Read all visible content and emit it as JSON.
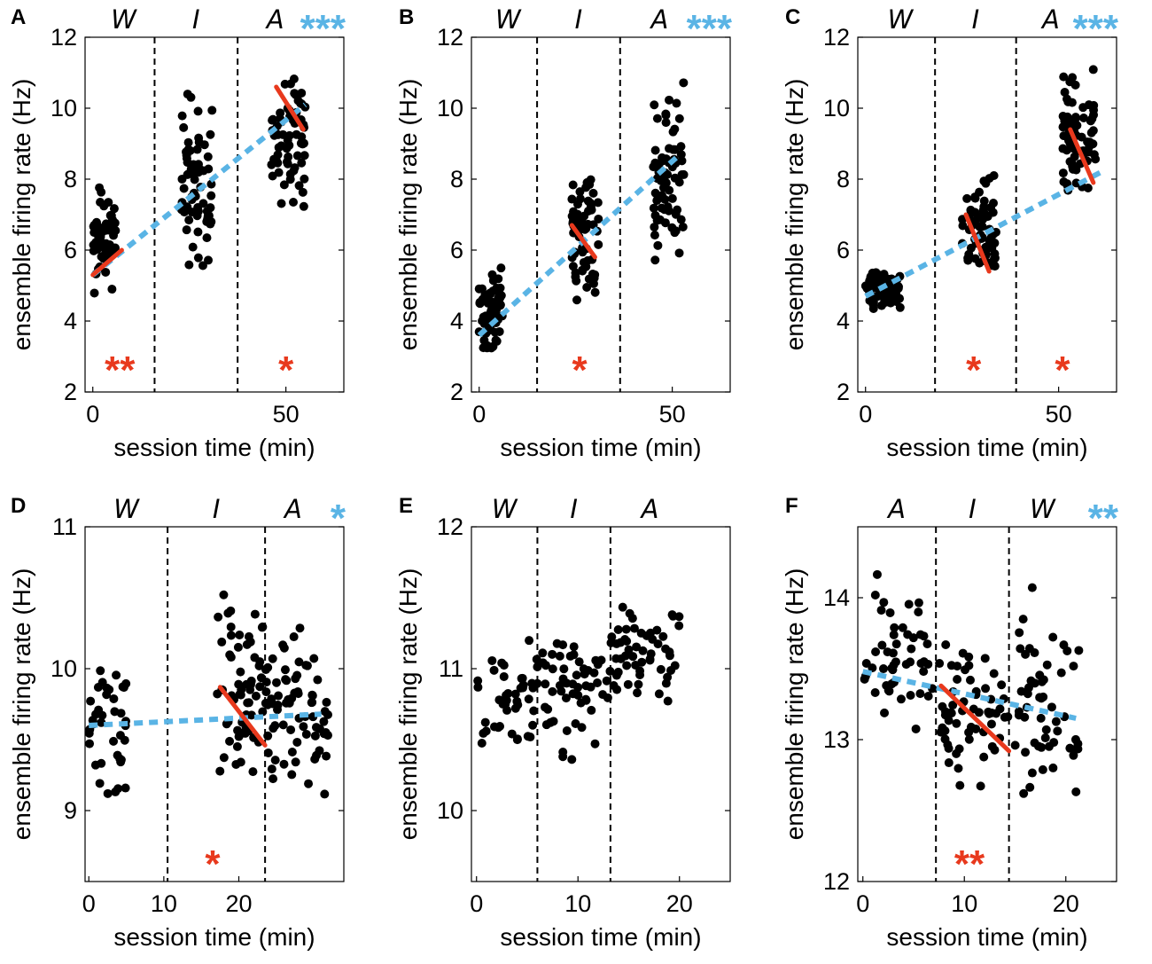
{
  "colors": {
    "dots": "#000000",
    "trend": "#5ab4e5",
    "phase_fit": "#e8391d",
    "stars_global": "#5ab4e5",
    "stars_local": "#e8391d"
  },
  "chart_data": [
    {
      "type": "scatter",
      "panel": "A",
      "xlabel": "session time (min)",
      "ylabel": "ensemble firing rate (Hz)",
      "xlim": [
        -2,
        65
      ],
      "ylim": [
        2,
        12
      ],
      "xticks": [
        0,
        50
      ],
      "yticks": [
        2,
        4,
        6,
        8,
        10,
        12
      ],
      "phase_labels": [
        "W",
        "I",
        "A"
      ],
      "boundaries": [
        16,
        37.5
      ],
      "global_stars": "***",
      "trend": {
        "x": [
          0,
          55
        ],
        "y": [
          5.3,
          10.1
        ]
      },
      "phase_fits": [
        {
          "x": [
            0,
            7.5
          ],
          "y": [
            5.3,
            6.0
          ]
        },
        {
          "x": [
            47.5,
            54.5
          ],
          "y": [
            10.6,
            9.4
          ]
        }
      ],
      "local_stars": [
        {
          "text": "**",
          "x": 7,
          "y": 2.6
        },
        {
          "text": "*",
          "x": 50,
          "y": 2.6
        }
      ],
      "clusters": [
        {
          "x": [
            0,
            6
          ],
          "y": [
            4.6,
            8.3
          ],
          "n": 55,
          "seed": 11
        },
        {
          "x": [
            23,
            31
          ],
          "y": [
            4.4,
            11.3
          ],
          "n": 65,
          "seed": 12
        },
        {
          "x": [
            46,
            55
          ],
          "y": [
            6.9,
            11.4
          ],
          "n": 65,
          "seed": 13
        }
      ]
    },
    {
      "type": "scatter",
      "panel": "B",
      "xlabel": "session time (min)",
      "ylabel": "ensemble firing rate (Hz)",
      "xlim": [
        -2,
        65
      ],
      "ylim": [
        2,
        12
      ],
      "xticks": [
        0,
        50
      ],
      "yticks": [
        2,
        4,
        6,
        8,
        10,
        12
      ],
      "phase_labels": [
        "W",
        "I",
        "A"
      ],
      "boundaries": [
        15,
        36.5
      ],
      "global_stars": "***",
      "trend": {
        "x": [
          0,
          52
        ],
        "y": [
          3.6,
          8.7
        ]
      },
      "phase_fits": [
        {
          "x": [
            24,
            30
          ],
          "y": [
            6.7,
            5.8
          ]
        }
      ],
      "local_stars": [
        {
          "text": "*",
          "x": 26,
          "y": 2.6
        }
      ],
      "clusters": [
        {
          "x": [
            0,
            6
          ],
          "y": [
            2.8,
            6.0
          ],
          "n": 65,
          "seed": 21
        },
        {
          "x": [
            24,
            31
          ],
          "y": [
            4.1,
            8.9
          ],
          "n": 65,
          "seed": 22
        },
        {
          "x": [
            45,
            53
          ],
          "y": [
            4.6,
            11.7
          ],
          "n": 70,
          "seed": 23
        }
      ]
    },
    {
      "type": "scatter",
      "panel": "C",
      "xlabel": "session time (min)",
      "ylabel": "ensemble firing rate (Hz)",
      "xlim": [
        -2,
        65
      ],
      "ylim": [
        2,
        12
      ],
      "xticks": [
        0,
        50
      ],
      "yticks": [
        2,
        4,
        6,
        8,
        10,
        12
      ],
      "phase_labels": [
        "W",
        "I",
        "A"
      ],
      "boundaries": [
        18,
        39
      ],
      "global_stars": "***",
      "trend": {
        "x": [
          0,
          61
        ],
        "y": [
          4.7,
          8.2
        ]
      },
      "phase_fits": [
        {
          "x": [
            26,
            32
          ],
          "y": [
            7.0,
            5.4
          ]
        },
        {
          "x": [
            53,
            59
          ],
          "y": [
            9.4,
            7.9
          ]
        }
      ],
      "local_stars": [
        {
          "text": "*",
          "x": 28,
          "y": 2.6
        },
        {
          "text": "*",
          "x": 51,
          "y": 2.6
        }
      ],
      "clusters": [
        {
          "x": [
            0,
            9
          ],
          "y": [
            4.2,
            5.6
          ],
          "n": 80,
          "seed": 31
        },
        {
          "x": [
            25,
            34
          ],
          "y": [
            4.6,
            8.9
          ],
          "n": 65,
          "seed": 32
        },
        {
          "x": [
            51,
            60
          ],
          "y": [
            6.7,
            11.9
          ],
          "n": 70,
          "seed": 33
        }
      ]
    },
    {
      "type": "scatter",
      "panel": "D",
      "xlabel": "session time (min)",
      "ylabel": "ensemble firing rate (Hz)",
      "xlim": [
        -0.5,
        34
      ],
      "ylim": [
        8.5,
        11
      ],
      "xticks": [
        0,
        10,
        20
      ],
      "yticks": [
        9,
        10,
        11
      ],
      "phase_labels": [
        "W",
        "I",
        "A"
      ],
      "boundaries": [
        10.5,
        23.5
      ],
      "global_stars": "*",
      "trend": {
        "x": [
          0,
          31
        ],
        "y": [
          9.6,
          9.68
        ]
      },
      "phase_fits": [
        {
          "x": [
            17.5,
            23.5
          ],
          "y": [
            9.87,
            9.46
          ]
        }
      ],
      "local_stars": [
        {
          "text": "*",
          "x": 16.5,
          "y": 8.62
        }
      ],
      "clusters": [
        {
          "x": [
            0,
            5
          ],
          "y": [
            8.9,
            10.3
          ],
          "n": 40,
          "seed": 41
        },
        {
          "x": [
            17,
            24
          ],
          "y": [
            9.0,
            10.65
          ],
          "n": 70,
          "seed": 42
        },
        {
          "x": [
            24,
            32
          ],
          "y": [
            9.0,
            10.4
          ],
          "n": 65,
          "seed": 43
        }
      ]
    },
    {
      "type": "scatter",
      "panel": "E",
      "xlabel": "session time (min)",
      "ylabel": "ensemble firing rate (Hz)",
      "xlim": [
        -0.5,
        25
      ],
      "ylim": [
        9.5,
        12
      ],
      "xticks": [
        0,
        10,
        20
      ],
      "yticks": [
        10,
        11,
        12
      ],
      "phase_labels": [
        "W",
        "I",
        "A"
      ],
      "boundaries": [
        6,
        13.2
      ],
      "global_stars": "",
      "trend": null,
      "phase_fits": [],
      "local_stars": [],
      "clusters": [
        {
          "x": [
            0,
            6
          ],
          "y": [
            10.25,
            11.35
          ],
          "n": 45,
          "seed": 51
        },
        {
          "x": [
            6.5,
            13.2
          ],
          "y": [
            10.25,
            11.5
          ],
          "n": 55,
          "seed": 52
        },
        {
          "x": [
            13.2,
            20
          ],
          "y": [
            10.6,
            11.65
          ],
          "n": 55,
          "seed": 53
        }
      ]
    },
    {
      "type": "scatter",
      "panel": "F",
      "xlabel": "session time (min)",
      "ylabel": "ensemble firing rate (Hz)",
      "xlim": [
        -0.5,
        25
      ],
      "ylim": [
        12,
        14.5
      ],
      "xticks": [
        0,
        10,
        20
      ],
      "yticks": [
        12,
        13,
        14
      ],
      "phase_labels": [
        "A",
        "I",
        "W"
      ],
      "boundaries": [
        7.2,
        14.4
      ],
      "global_stars": "**",
      "trend": {
        "x": [
          0,
          21
        ],
        "y": [
          13.48,
          13.15
        ]
      },
      "phase_fits": [
        {
          "x": [
            7.7,
            14.4
          ],
          "y": [
            13.38,
            12.92
          ]
        }
      ],
      "local_stars": [
        {
          "text": "**",
          "x": 10.5,
          "y": 12.12
        }
      ],
      "clusters": [
        {
          "x": [
            0,
            7
          ],
          "y": [
            12.75,
            14.25
          ],
          "n": 50,
          "seed": 61
        },
        {
          "x": [
            7.5,
            14.4
          ],
          "y": [
            12.45,
            13.95
          ],
          "n": 60,
          "seed": 62
        },
        {
          "x": [
            15,
            21.5
          ],
          "y": [
            12.4,
            14.1
          ],
          "n": 55,
          "seed": 63
        }
      ]
    }
  ]
}
